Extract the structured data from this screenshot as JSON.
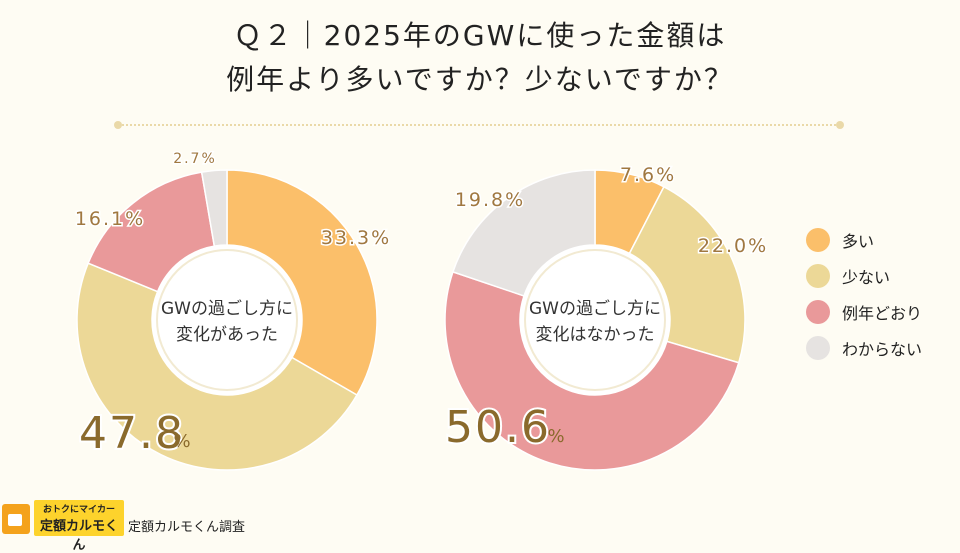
{
  "title": {
    "line1": "Ｑ２｜2025年のGWに使った金額は",
    "line2": "例年より多いですか？少ないですか？"
  },
  "legend": [
    {
      "label": "多い",
      "color": "#fbbf6a"
    },
    {
      "label": "少ない",
      "color": "#ecd897"
    },
    {
      "label": "例年どおり",
      "color": "#e9999a"
    },
    {
      "label": "わからない",
      "color": "#e6e3e1"
    }
  ],
  "chart_data": [
    {
      "type": "pie",
      "donut": true,
      "center_label": [
        "GWの過ごし方に",
        "変化があった"
      ],
      "categories": [
        "多い",
        "少ない",
        "例年どおり",
        "わからない"
      ],
      "values": [
        33.3,
        47.8,
        16.1,
        2.7
      ],
      "labels": [
        "33.3%",
        "47.8",
        "16.1%",
        "2.7%"
      ],
      "emphasis_unit": "%"
    },
    {
      "type": "pie",
      "donut": true,
      "center_label": [
        "GWの過ごし方に",
        "変化はなかった"
      ],
      "categories": [
        "多い",
        "少ない",
        "例年どおり",
        "わからない"
      ],
      "values": [
        7.6,
        22.0,
        50.6,
        19.8
      ],
      "labels": [
        "7.6%",
        "22.0%",
        "50.6",
        "19.8%"
      ],
      "emphasis_unit": "%"
    }
  ],
  "logo": {
    "tagline": "おトクにマイカー",
    "name": "定額カルモくん"
  },
  "source": "定額カルモくん調査"
}
